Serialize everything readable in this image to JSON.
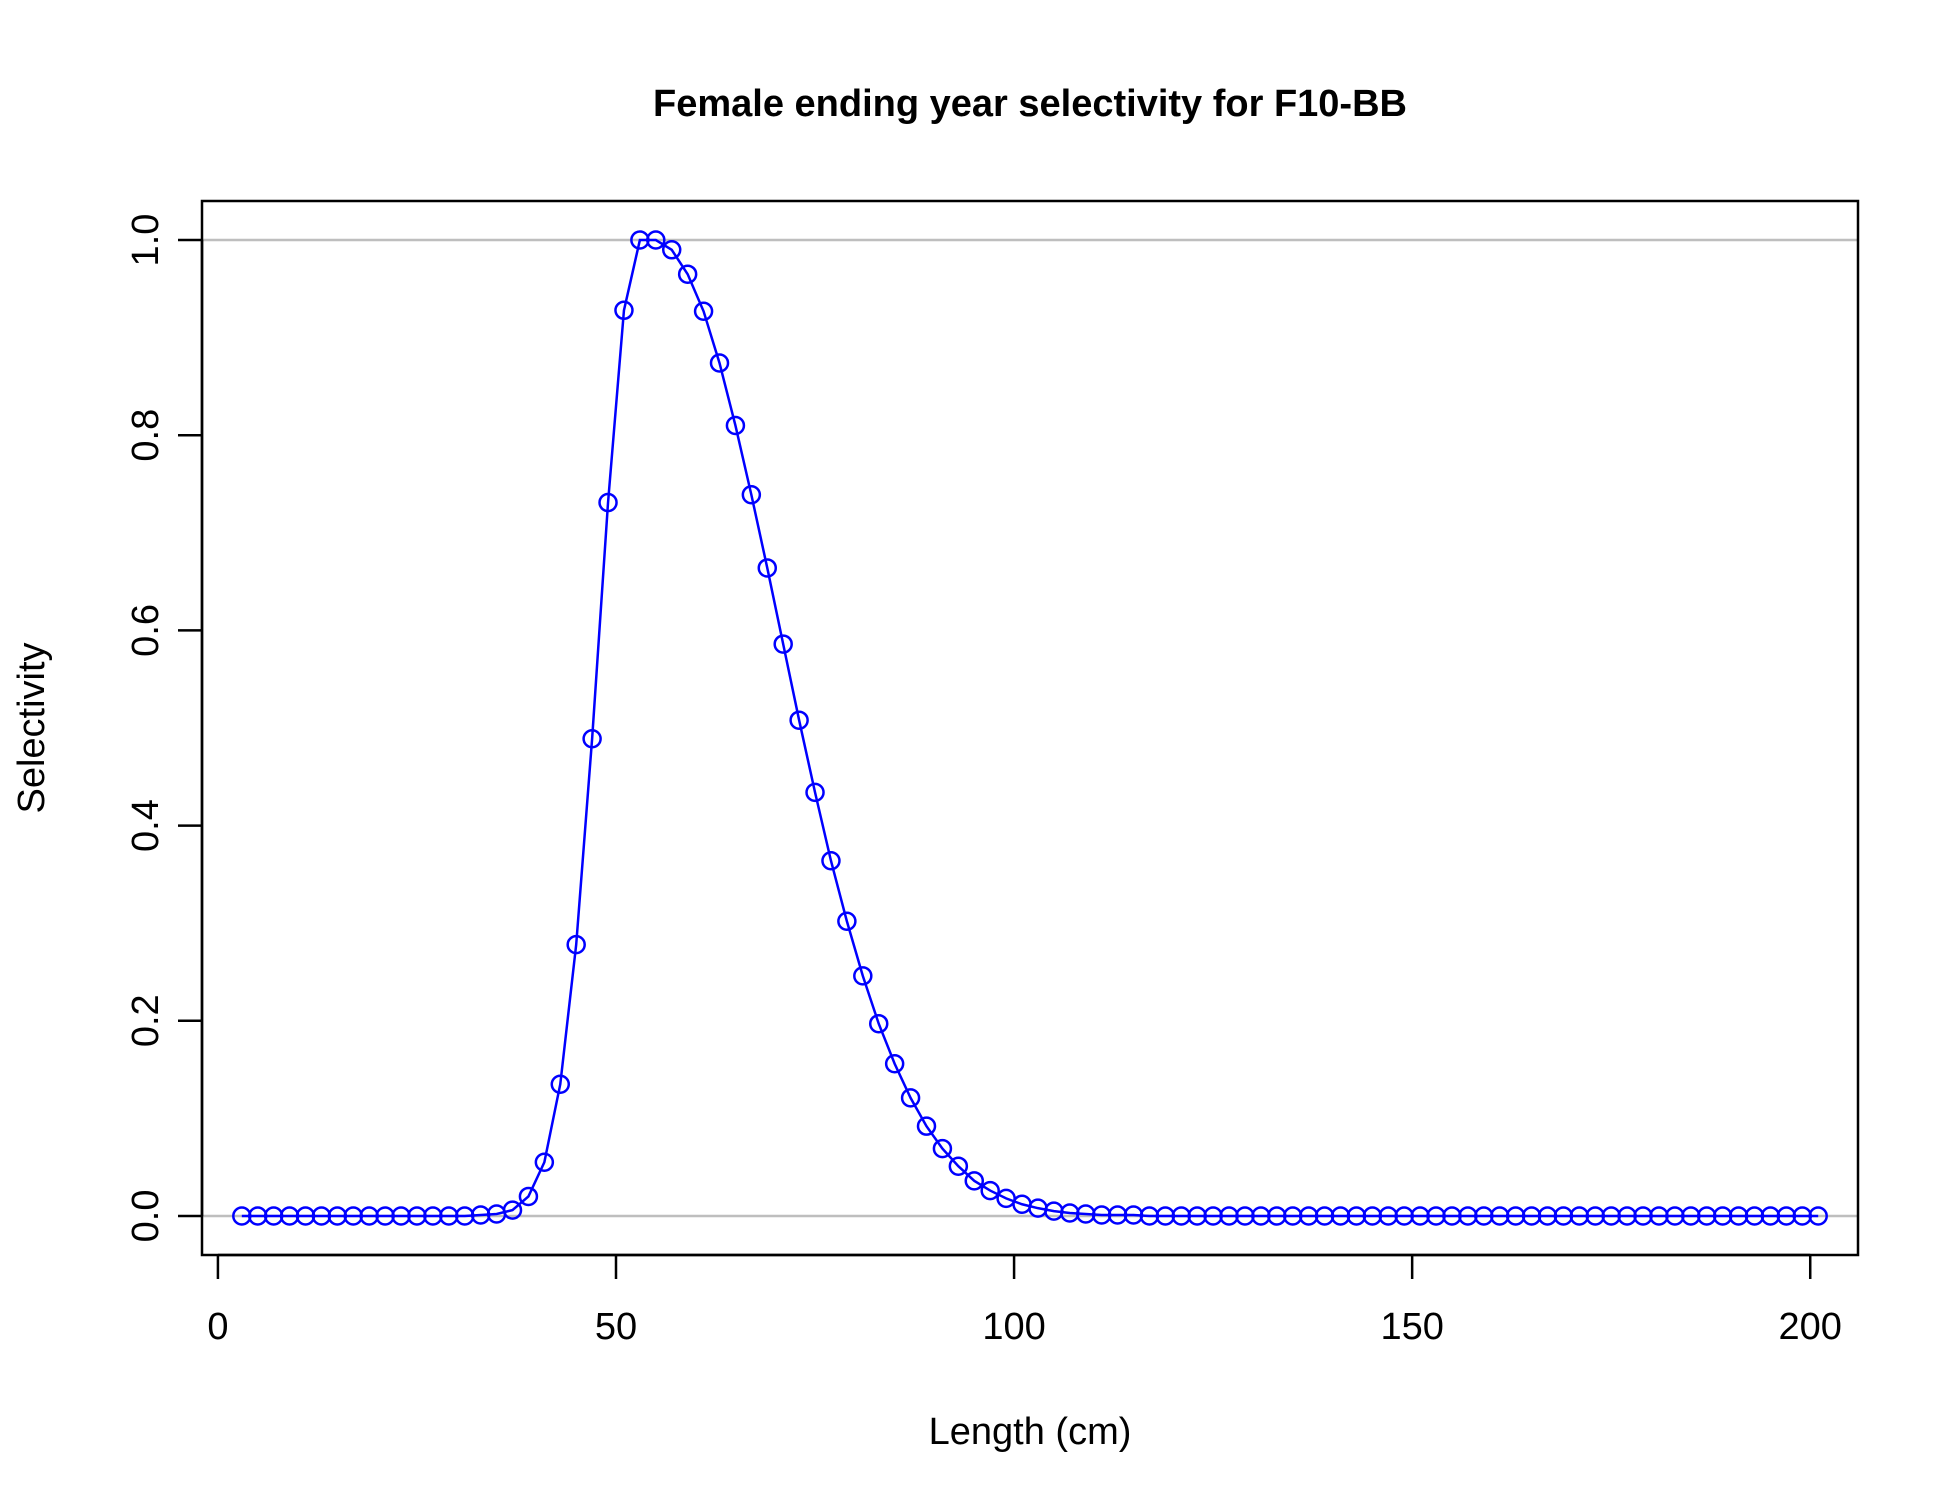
{
  "chart_data": {
    "type": "line",
    "title": "Female ending year selectivity for F10-BB",
    "xlabel": "Length (cm)",
    "ylabel": "Selectivity",
    "xlim": [
      -2,
      206
    ],
    "ylim": [
      -0.04,
      1.04
    ],
    "x_ticks": [
      0,
      50,
      100,
      150,
      200
    ],
    "x_tick_labels": [
      "0",
      "50",
      "100",
      "150",
      "200"
    ],
    "y_ticks": [
      0.0,
      0.2,
      0.4,
      0.6,
      0.8,
      1.0
    ],
    "y_tick_labels": [
      "0.0",
      "0.2",
      "0.4",
      "0.6",
      "0.8",
      "1.0"
    ],
    "reference_lines": [
      0,
      1
    ],
    "grid": false,
    "series": [
      {
        "color": "#0000ff",
        "marker": "open-circle",
        "x": [
          3,
          5,
          7,
          9,
          11,
          13,
          15,
          17,
          19,
          21,
          23,
          25,
          27,
          29,
          31,
          33,
          35,
          37,
          39,
          41,
          43,
          45,
          47,
          49,
          51,
          53,
          55,
          57,
          59,
          61,
          63,
          65,
          67,
          69,
          71,
          73,
          75,
          77,
          79,
          81,
          83,
          85,
          87,
          89,
          91,
          93,
          95,
          97,
          99,
          101,
          103,
          105,
          107,
          109,
          111,
          113,
          115,
          117,
          119,
          121,
          123,
          125,
          127,
          129,
          131,
          133,
          135,
          137,
          139,
          141,
          143,
          145,
          147,
          149,
          151,
          153,
          155,
          157,
          159,
          161,
          163,
          165,
          167,
          169,
          171,
          173,
          175,
          177,
          179,
          181,
          183,
          185,
          187,
          189,
          191,
          193,
          195,
          197,
          199,
          201
        ],
        "y": [
          0,
          0,
          0,
          0,
          0,
          0,
          0,
          0,
          0,
          0,
          0,
          0,
          0,
          0,
          0,
          0.001,
          0.002,
          0.006,
          0.02,
          0.055,
          0.135,
          0.278,
          0.489,
          0.731,
          0.928,
          1.0,
          1.0,
          0.99,
          0.965,
          0.927,
          0.874,
          0.81,
          0.739,
          0.664,
          0.586,
          0.508,
          0.434,
          0.364,
          0.302,
          0.246,
          0.197,
          0.156,
          0.121,
          0.092,
          0.069,
          0.051,
          0.036,
          0.026,
          0.018,
          0.012,
          0.008,
          0.005,
          0.003,
          0.002,
          0.001,
          0.001,
          0.001,
          0,
          0,
          0,
          0,
          0,
          0,
          0,
          0,
          0,
          0,
          0,
          0,
          0,
          0,
          0,
          0,
          0,
          0,
          0,
          0,
          0,
          0,
          0,
          0,
          0,
          0,
          0,
          0,
          0,
          0,
          0,
          0,
          0,
          0,
          0,
          0,
          0,
          0,
          0,
          0,
          0,
          0,
          0
        ]
      }
    ]
  }
}
